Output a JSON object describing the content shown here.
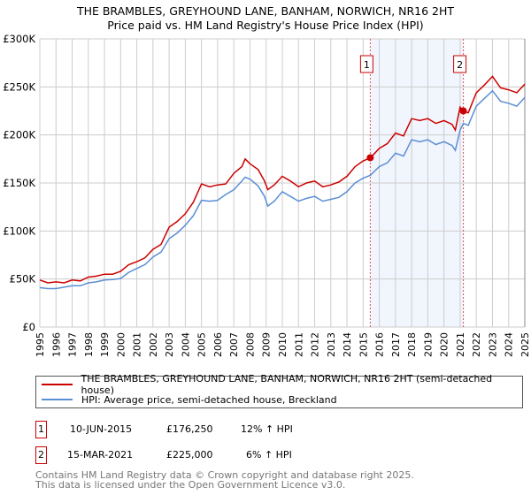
{
  "title": {
    "line1": "THE BRAMBLES, GREYHOUND LANE, BANHAM, NORWICH, NR16 2HT",
    "line2": "Price paid vs. HM Land Registry's House Price Index (HPI)"
  },
  "chart_data": {
    "type": "line",
    "xlim": [
      1995,
      2025
    ],
    "ylim": [
      0,
      300000
    ],
    "y_ticks": [
      0,
      50000,
      100000,
      150000,
      200000,
      250000,
      300000
    ],
    "y_tick_labels": [
      "£0",
      "£50K",
      "£100K",
      "£150K",
      "£200K",
      "£250K",
      "£300K"
    ],
    "x_ticks": [
      1995,
      1996,
      1997,
      1998,
      1999,
      2000,
      2001,
      2002,
      2003,
      2004,
      2005,
      2006,
      2007,
      2008,
      2009,
      2010,
      2011,
      2012,
      2013,
      2014,
      2015,
      2016,
      2017,
      2018,
      2019,
      2020,
      2021,
      2022,
      2023,
      2024,
      2025
    ],
    "x_tick_labels": [
      "1995",
      "1996",
      "1997",
      "1998",
      "1999",
      "2000",
      "2001",
      "2002",
      "2003",
      "2004",
      "2005",
      "2006",
      "2007",
      "2008",
      "2009",
      "2010",
      "2011",
      "2012",
      "2013",
      "2014",
      "2015",
      "2016",
      "2017",
      "2018",
      "2019",
      "2020",
      "2021",
      "2022",
      "2023",
      "2024",
      "2025"
    ],
    "grid": true,
    "x": [
      1995,
      1995.5,
      1996,
      1996.5,
      1997,
      1997.5,
      1998,
      1998.5,
      1999,
      1999.5,
      2000,
      2000.5,
      2001,
      2001.5,
      2002,
      2002.5,
      2003,
      2003.5,
      2004,
      2004.5,
      2005,
      2005.5,
      2006,
      2006.5,
      2007,
      2007.5,
      2007.7,
      2008,
      2008.5,
      2008.9,
      2009.1,
      2009.5,
      2010,
      2010.5,
      2011,
      2011.5,
      2012,
      2012.5,
      2013,
      2013.5,
      2014,
      2014.5,
      2015,
      2015.44,
      2016,
      2016.5,
      2017,
      2017.5,
      2018,
      2018.5,
      2019,
      2019.5,
      2020,
      2020.5,
      2020.7,
      2021,
      2021.2,
      2021.5,
      2022,
      2022.5,
      2023,
      2023.5,
      2024,
      2024.5,
      2025
    ],
    "series": [
      {
        "name": "THE BRAMBLES, GREYHOUND LANE, BANHAM, NORWICH, NR16 2HT (semi-detached house)",
        "color": "#cc0000",
        "values": [
          49000,
          46000,
          47000,
          46000,
          49000,
          48000,
          52000,
          53000,
          55000,
          55000,
          58000,
          65000,
          68000,
          72000,
          81000,
          86000,
          104000,
          110000,
          118000,
          130000,
          149000,
          146000,
          148000,
          149000,
          160000,
          167000,
          175000,
          170000,
          164000,
          152000,
          143000,
          148000,
          157000,
          152000,
          146000,
          150000,
          152000,
          146000,
          148000,
          151000,
          157000,
          167000,
          173000,
          176000,
          186000,
          191000,
          202000,
          199000,
          217000,
          215000,
          217000,
          212000,
          215000,
          211000,
          205000,
          229000,
          225000,
          223000,
          244000,
          252000,
          261000,
          249000,
          247000,
          244000,
          253000
        ]
      },
      {
        "name": "HPI: Average price, semi-detached house, Breckland",
        "color": "#5b8fd4",
        "values": [
          41000,
          40000,
          40000,
          41500,
          43000,
          43000,
          46000,
          47000,
          49000,
          49500,
          50500,
          57000,
          61000,
          65000,
          73000,
          78000,
          92000,
          98000,
          106000,
          116000,
          132000,
          131000,
          132000,
          138000,
          143000,
          152000,
          156000,
          154000,
          147000,
          136000,
          126000,
          131000,
          141000,
          136000,
          131000,
          134000,
          136000,
          131000,
          133000,
          135000,
          141000,
          150000,
          155000,
          158000,
          167000,
          171000,
          181000,
          178000,
          195000,
          193000,
          195000,
          190000,
          193000,
          189000,
          184000,
          205000,
          212000,
          210000,
          230000,
          238000,
          246000,
          235000,
          233000,
          230000,
          239000
        ]
      }
    ],
    "sales": [
      {
        "label": "1",
        "x": 2015.44,
        "price": 176250
      },
      {
        "label": "2",
        "x": 2021.2,
        "price": 225000
      }
    ],
    "shaded_range": [
      2015.44,
      2021.2
    ],
    "legend_position": "below"
  },
  "legend": {
    "red_label": "THE BRAMBLES, GREYHOUND LANE, BANHAM, NORWICH, NR16 2HT (semi-detached house)",
    "blue_label": "HPI: Average price, semi-detached house, Breckland"
  },
  "transactions": [
    {
      "num": "1",
      "date": "10-JUN-2015",
      "price": "£176,250",
      "hpi": "12% ↑ HPI"
    },
    {
      "num": "2",
      "date": "15-MAR-2021",
      "price": "£225,000",
      "hpi": "6% ↑ HPI"
    }
  ],
  "footer": {
    "line1": "Contains HM Land Registry data © Crown copyright and database right 2025.",
    "line2": "This data is licensed under the Open Government Licence v3.0."
  }
}
